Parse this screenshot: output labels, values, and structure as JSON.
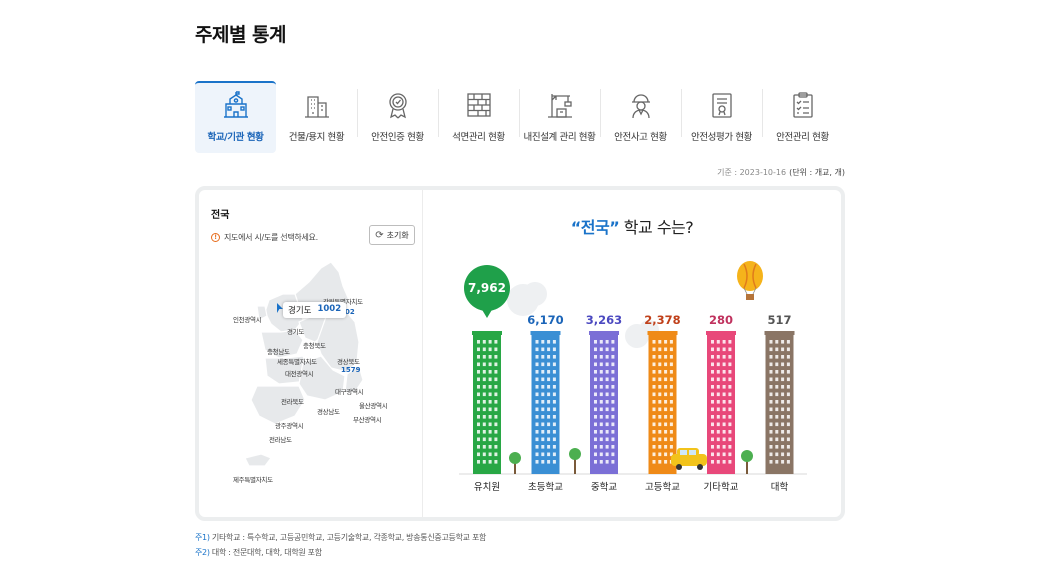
{
  "page": {
    "title": "주제별 통계"
  },
  "tabs": [
    {
      "label": "학교/기관 현황",
      "icon": "school-icon",
      "active": true
    },
    {
      "label": "건물/용지 현황",
      "icon": "building-icon",
      "active": false
    },
    {
      "label": "안전인증 현황",
      "icon": "certificate-badge-icon",
      "active": false
    },
    {
      "label": "석면관리 현황",
      "icon": "brick-wall-icon",
      "active": false
    },
    {
      "label": "내진설계 관리 현황",
      "icon": "crane-icon",
      "active": false
    },
    {
      "label": "안전사고 현황",
      "icon": "worker-icon",
      "active": false
    },
    {
      "label": "안전성평가 현황",
      "icon": "evaluation-document-icon",
      "active": false
    },
    {
      "label": "안전관리 현황",
      "icon": "checklist-icon",
      "active": false
    }
  ],
  "basis": {
    "date": "기준 : 2023-10-16",
    "unit": "(단위 : 개교, 개)"
  },
  "map": {
    "region_title": "전국",
    "notice": "지도에서 시/도를 선택하세요.",
    "reset_label": "초기화",
    "tooltip": {
      "region": "경기도",
      "value": "1002"
    },
    "labels": [
      "강원특별자치도",
      "인천광역시",
      "경기도",
      "충청북도",
      "충청남도",
      "세종특별자치도",
      "대전광역시",
      "경상북도",
      "대구광역시",
      "울산광역시",
      "전라북도",
      "경상남도",
      "부산광역시",
      "광주광역시",
      "전라남도",
      "제주특별자치도"
    ],
    "extra_values": [
      "02",
      "1579"
    ]
  },
  "chart_title": {
    "quote_open": "“",
    "region": "전국",
    "quote_close": "”",
    "rest": " 학교 수는?"
  },
  "chart_data": {
    "type": "bar",
    "categories": [
      "유치원",
      "초등학교",
      "중학교",
      "고등학교",
      "기타학교",
      "대학"
    ],
    "values": [
      7962,
      6170,
      3263,
      2378,
      280,
      517
    ],
    "value_labels": [
      "7,962",
      "6,170",
      "3,263",
      "2,378",
      "280",
      "517"
    ],
    "colors": [
      "#28a745",
      "#3a8fd4",
      "#7b6fd6",
      "#ef8a17",
      "#e8487a",
      "#8a7565"
    ],
    "label_colors": [
      "#ffffff",
      "#1a64b8",
      "#4b49c0",
      "#c0401a",
      "#c0325e",
      "#555555"
    ],
    "highlight_index": 0,
    "highlight_color": "#1fa04a"
  },
  "footnotes": [
    {
      "mark": "주1)",
      "text": "기타학교 : 특수학교, 고등공민학교, 고등기술학교, 각종학교, 방송통신중고등학교 포함"
    },
    {
      "mark": "주2)",
      "text": "대학 : 전문대학, 대학, 대학원 포함"
    }
  ]
}
